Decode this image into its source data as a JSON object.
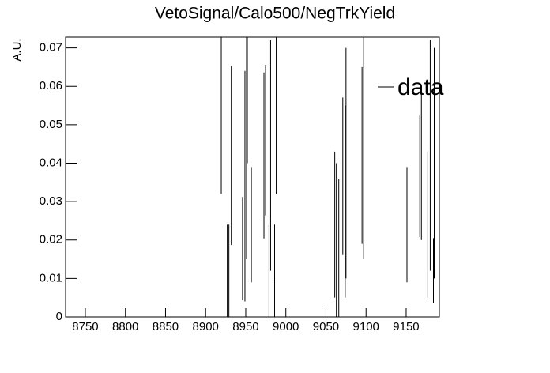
{
  "chart_data": {
    "type": "errorbar",
    "title": "VetoSignal/Calo500/NegTrkYield",
    "y_label": "A.U.",
    "xlim": [
      8725.4,
      9191.4
    ],
    "ylim": [
      0,
      0.0728
    ],
    "xticks": [
      8750,
      8800,
      8850,
      8900,
      8950,
      9000,
      9050,
      9100,
      9150
    ],
    "yticks": [
      0,
      0.01,
      0.02,
      0.03,
      0.04,
      0.05,
      0.06,
      0.07
    ],
    "legend_position": "top-right",
    "series": [
      {
        "name": "data",
        "color": "#000000",
        "x": [
          8919.5,
          8927,
          8929,
          8932,
          8946,
          8949,
          8951,
          8952,
          8957,
          8972.7,
          8974.7,
          8979,
          8981,
          8984,
          8986,
          8988,
          9061,
          9063,
          9066,
          9071,
          9074,
          9075,
          9095,
          9097,
          9151,
          9167,
          9169,
          9177,
          9180,
          9184,
          9185
        ],
        "values": [
          0.06,
          0.012,
          0.012,
          0.042,
          0.0178,
          0.034,
          0.045,
          0.06,
          0.024,
          0.042,
          0.046,
          0.012,
          0.042,
          0.0167,
          0.012,
          0.06,
          0.024,
          0.02,
          0.018,
          0.0366,
          0.03,
          0.04,
          0.042,
          0.06,
          0.024,
          0.0366,
          0.04,
          0.024,
          0.042,
          0.012,
          0.04
        ],
        "errors": [
          0.028,
          0.012,
          0.012,
          0.0233,
          0.0134,
          0.03,
          0.03,
          0.02,
          0.015,
          0.0216,
          0.0196,
          0.012,
          0.03,
          0.0073,
          0.012,
          0.028,
          0.019,
          0.02,
          0.018,
          0.0205,
          0.025,
          0.03,
          0.023,
          0.045,
          0.015,
          0.0158,
          0.02,
          0.019,
          0.03,
          0.0085,
          0.03
        ]
      }
    ]
  }
}
